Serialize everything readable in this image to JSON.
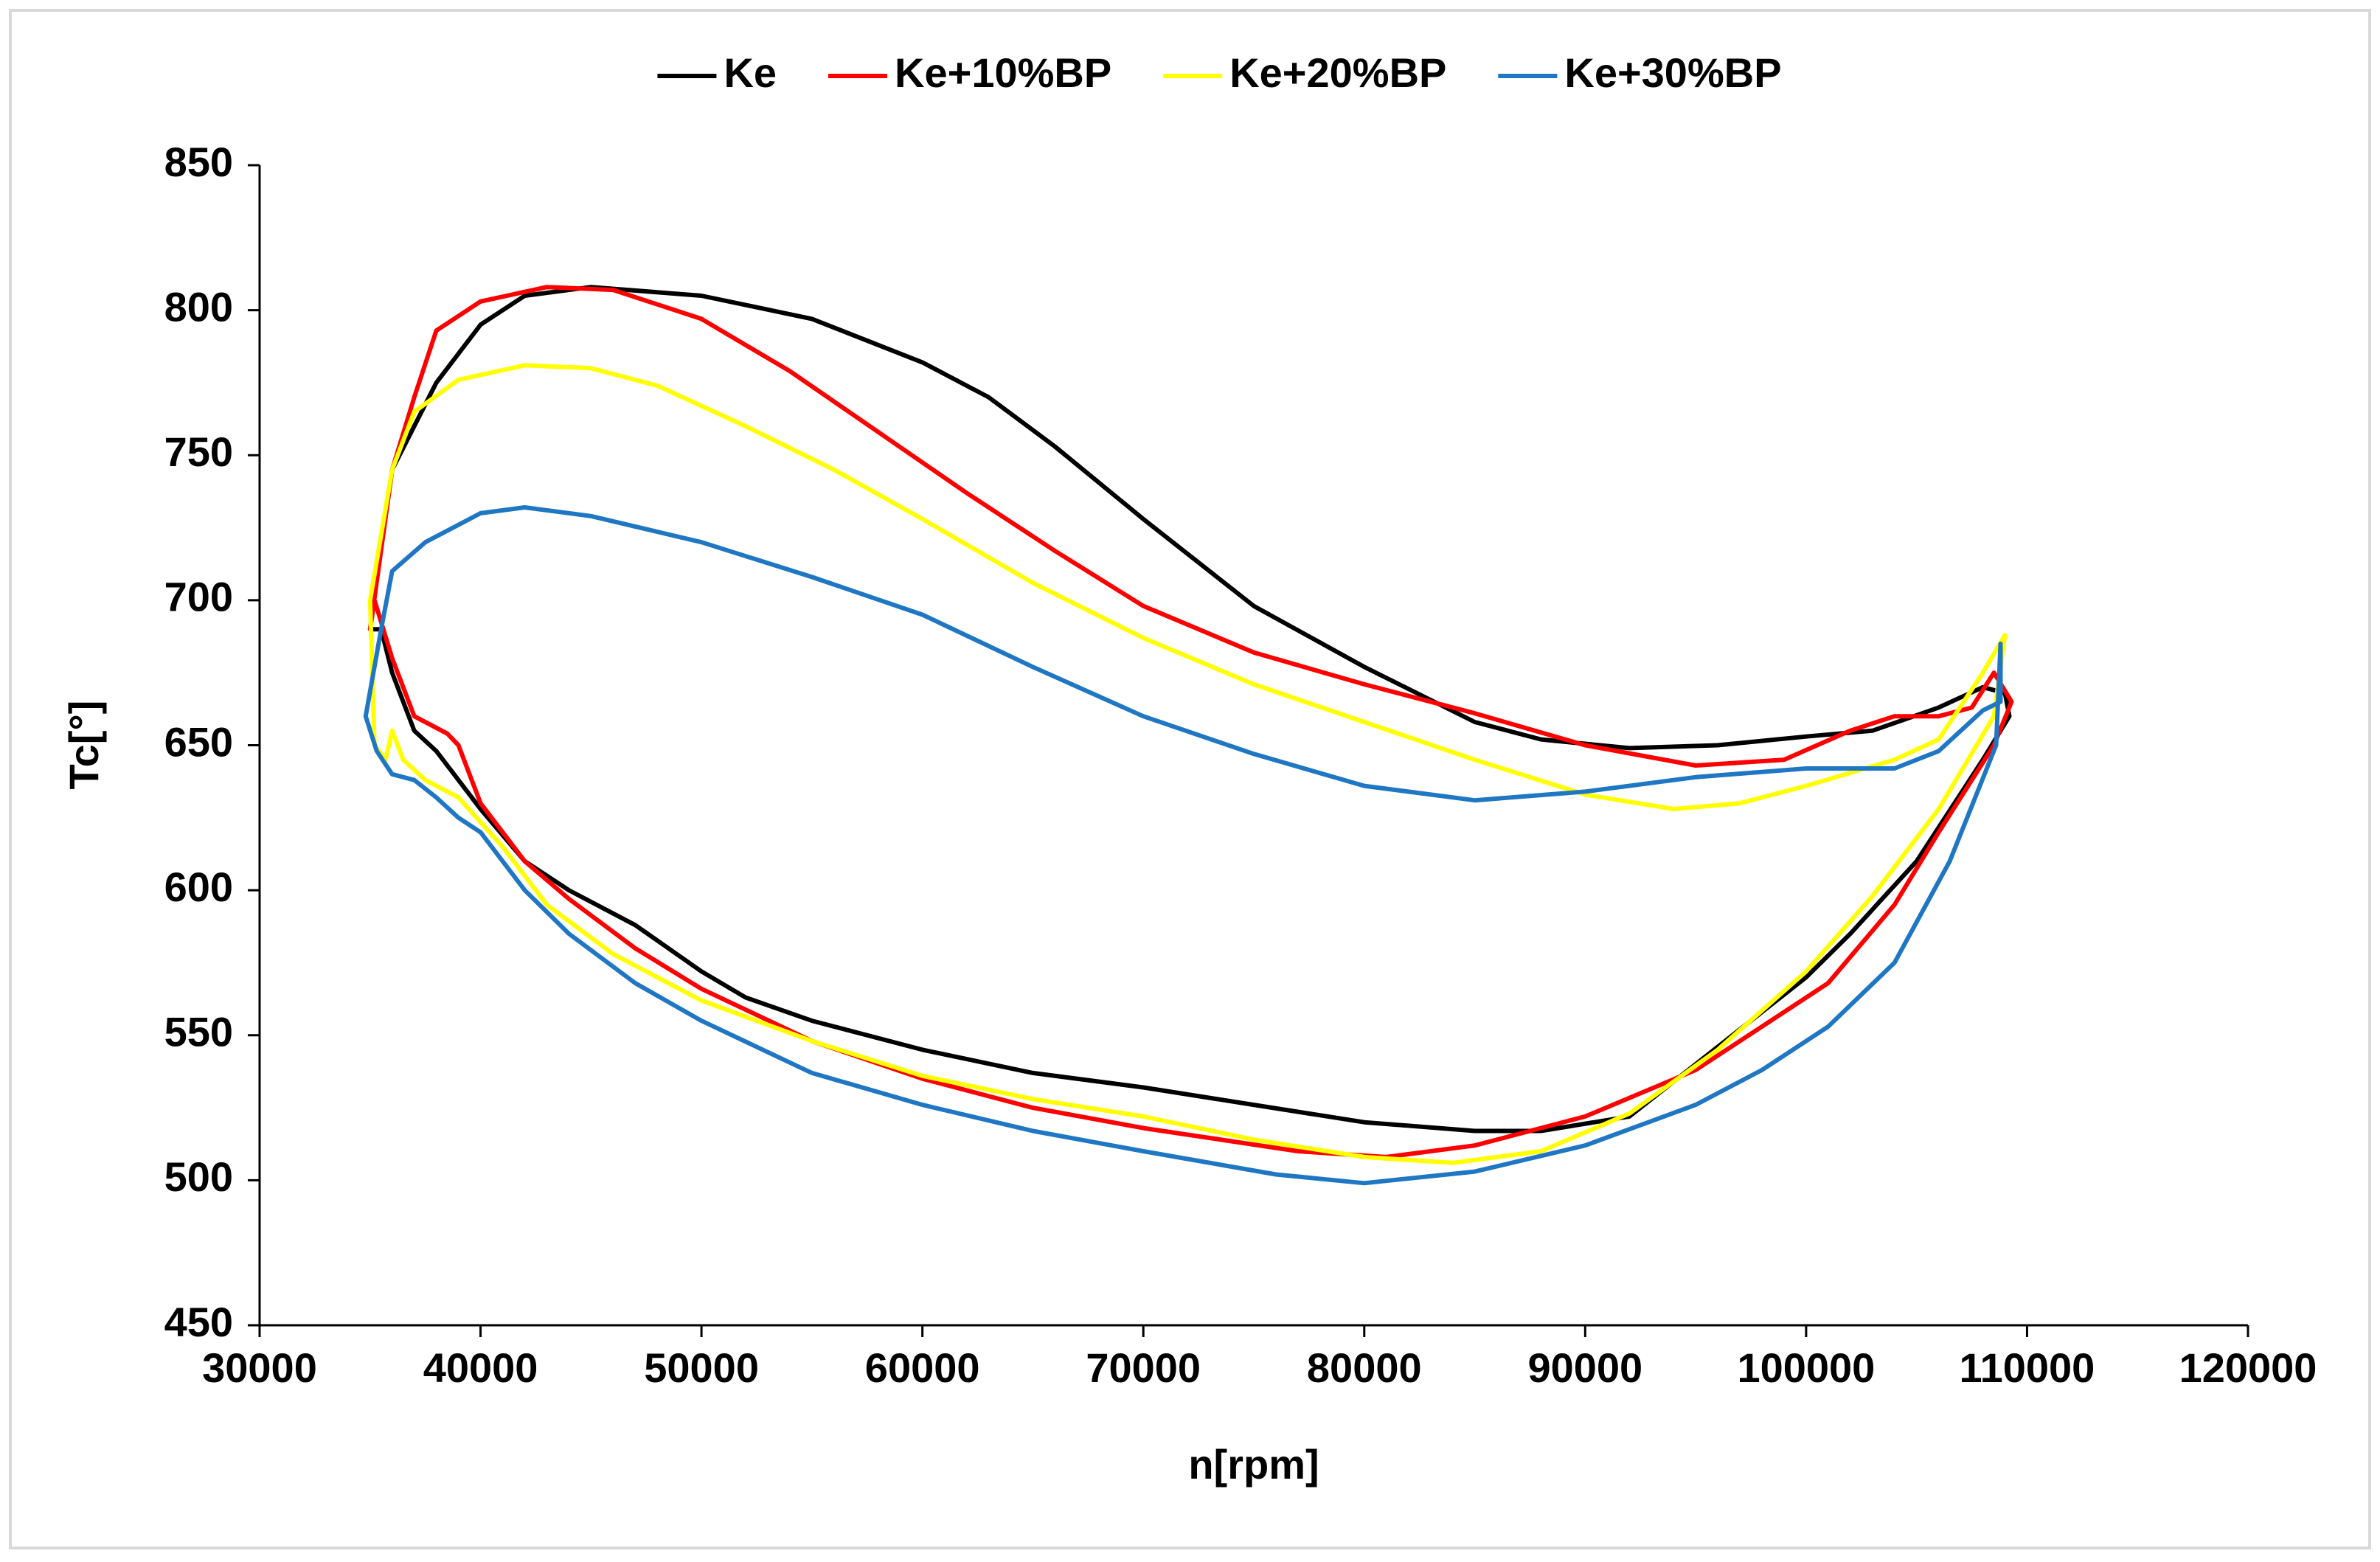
{
  "chart_data": {
    "type": "line",
    "x_label": "n[rpm]",
    "y_label": "Tc[°]",
    "xlim": [
      30000,
      120000
    ],
    "xticks": [
      30000,
      40000,
      50000,
      60000,
      70000,
      80000,
      90000,
      100000,
      110000,
      120000
    ],
    "ylim": [
      450,
      850
    ],
    "yticks": [
      450,
      500,
      550,
      600,
      650,
      700,
      750,
      800,
      850
    ],
    "grid": false,
    "legend": "top",
    "series": [
      {
        "name": "Ke",
        "color": "#000000",
        "x": [
          35000,
          36000,
          38000,
          40000,
          42000,
          45000,
          50000,
          55000,
          60000,
          63000,
          66000,
          70000,
          75000,
          80000,
          85000,
          88000,
          92000,
          96000,
          100000,
          103000,
          106000,
          108000,
          109000,
          109200,
          108000,
          105000,
          102000,
          100000,
          95000,
          92000,
          88000,
          85000,
          80000,
          75000,
          70000,
          65000,
          60000,
          55000,
          52000,
          50000,
          47000,
          44000,
          42000,
          40000,
          38000,
          37000,
          36000,
          35500,
          35000
        ],
        "y": [
          690,
          745,
          775,
          795,
          805,
          808,
          805,
          797,
          782,
          770,
          753,
          728,
          698,
          677,
          658,
          652,
          649,
          650,
          653,
          655,
          663,
          670,
          668,
          660,
          645,
          610,
          585,
          570,
          540,
          522,
          517,
          517,
          520,
          526,
          532,
          537,
          545,
          555,
          563,
          572,
          588,
          600,
          610,
          628,
          648,
          655,
          675,
          690,
          690
        ]
      },
      {
        "name": "Ke+10%BP",
        "color": "#ff0000",
        "x": [
          35000,
          36000,
          37000,
          38000,
          40000,
          43000,
          46000,
          50000,
          54000,
          58000,
          62000,
          66000,
          70000,
          75000,
          80000,
          85000,
          90000,
          95000,
          99000,
          102000,
          104000,
          106000,
          107500,
          108500,
          109300,
          108500,
          106000,
          104000,
          101000,
          98000,
          95000,
          90000,
          85000,
          81000,
          77000,
          70000,
          65000,
          60000,
          55000,
          50000,
          47000,
          44000,
          42000,
          40000,
          39000,
          38500,
          37000,
          36000,
          35200,
          35000
        ],
        "y": [
          690,
          745,
          770,
          793,
          803,
          808,
          807,
          797,
          779,
          758,
          737,
          717,
          698,
          682,
          671,
          661,
          650,
          643,
          645,
          655,
          660,
          660,
          663,
          675,
          665,
          650,
          620,
          595,
          568,
          553,
          538,
          522,
          512,
          508,
          510,
          518,
          525,
          535,
          548,
          566,
          580,
          597,
          610,
          630,
          650,
          654,
          660,
          680,
          700,
          690
        ]
      },
      {
        "name": "Ke+20%BP",
        "color": "#ffff00",
        "x": [
          35000,
          36000,
          37000,
          39000,
          42000,
          45000,
          48000,
          52000,
          56000,
          60000,
          65000,
          70000,
          75000,
          80000,
          85000,
          90000,
          94000,
          97000,
          100000,
          104000,
          106000,
          108000,
          109000,
          108500,
          106000,
          103000,
          100000,
          96000,
          92000,
          88000,
          84000,
          80000,
          75000,
          70000,
          65000,
          60000,
          55000,
          50000,
          46000,
          43000,
          41000,
          39000,
          37500,
          36500,
          36000,
          35700,
          35200,
          35000
        ],
        "y": [
          700,
          745,
          765,
          776,
          781,
          780,
          774,
          760,
          745,
          728,
          706,
          687,
          671,
          658,
          645,
          633,
          628,
          630,
          636,
          645,
          652,
          675,
          688,
          660,
          628,
          598,
          572,
          545,
          523,
          510,
          506,
          508,
          514,
          522,
          528,
          536,
          548,
          562,
          578,
          595,
          615,
          632,
          638,
          645,
          655,
          645,
          650,
          700
        ]
      },
      {
        "name": "Ke+30%BP",
        "color": "#1f77c4",
        "x": [
          34800,
          35500,
          36000,
          37500,
          40000,
          42000,
          45000,
          50000,
          55000,
          60000,
          65000,
          70000,
          75000,
          80000,
          85000,
          90000,
          95000,
          100000,
          104000,
          106000,
          108000,
          108800,
          108800,
          108600,
          106500,
          104000,
          101000,
          98000,
          95000,
          90000,
          85000,
          80000,
          76000,
          70000,
          65000,
          60000,
          55000,
          50000,
          47000,
          44000,
          42000,
          40000,
          39000,
          38000,
          37000,
          36000,
          35300,
          34800
        ],
        "y": [
          660,
          690,
          710,
          720,
          730,
          732,
          729,
          720,
          708,
          695,
          677,
          660,
          647,
          636,
          631,
          634,
          639,
          642,
          642,
          648,
          662,
          665,
          685,
          650,
          610,
          575,
          553,
          538,
          526,
          512,
          503,
          499,
          502,
          510,
          517,
          526,
          537,
          555,
          568,
          585,
          600,
          620,
          625,
          632,
          638,
          640,
          648,
          660
        ]
      }
    ]
  }
}
